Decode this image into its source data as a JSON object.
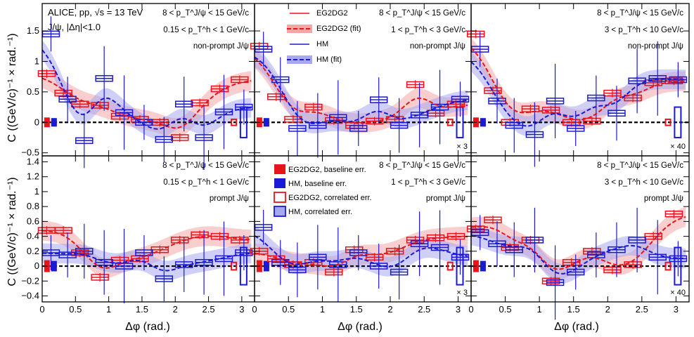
{
  "figure": {
    "experiment": "ALICE, pp, √s = 13 TeV",
    "particle": "J/ψ, |Δη|<1.0",
    "x_axis_title": "Δφ (rad.)",
    "y_axis_title": "C ((GeV/c)⁻¹ × rad.⁻¹)",
    "x_ticks": [
      "0",
      "0.5",
      "1",
      "1.5",
      "2",
      "2.5",
      "3"
    ],
    "y_ticks_top": [
      "−0.5",
      "0",
      "0.5",
      "1",
      "1.5"
    ],
    "y_ticks_bottom": [
      "−0.4",
      "−0.2",
      "0",
      "0.2",
      "0.4",
      "0.6",
      "0.8",
      "1",
      "1.2",
      "1.4"
    ],
    "colors": {
      "red": "#e8141c",
      "blue": "#1a1ad6",
      "red_band": "#f4a6a6",
      "blue_band": "#a8a8f0"
    }
  },
  "legend_top": [
    "EG2DG2",
    "EG2DG2 (fit)",
    "HM",
    "HM (fit)"
  ],
  "legend_bottom": [
    "EG2DG2, baseline err.",
    "HM, baseline err.",
    "EG2DG2, correlated err.",
    "HM, correlated err."
  ],
  "chart_data": [
    {
      "type": "scatter",
      "panel": "top-left",
      "jpsi_pt": "8 < p_T^J/ψ < 15 GeV/c",
      "h_pt": "0.15 < p_T^h < 1 GeV/c",
      "category": "non-prompt J/ψ",
      "scale": "",
      "x": [
        0.1,
        0.35,
        0.6,
        0.9,
        1.2,
        1.5,
        1.8,
        2.1,
        2.4,
        2.7,
        3.0
      ],
      "series": [
        {
          "name": "EG2DG2",
          "values": [
            0.8,
            0.48,
            0.3,
            0.28,
            0.1,
            0.05,
            0.0,
            -0.25,
            0.32,
            0.55,
            0.7
          ]
        },
        {
          "name": "HM",
          "values": [
            1.45,
            0.38,
            -0.3,
            0.72,
            0.16,
            0.0,
            -0.28,
            0.3,
            -0.25,
            0.17,
            0.25
          ]
        }
      ],
      "ylim": [
        -0.55,
        1.95
      ]
    },
    {
      "type": "scatter",
      "panel": "top-middle",
      "jpsi_pt": "8 < p_T^J/ψ < 15 GeV/c",
      "h_pt": "1 < p_T^h < 3 GeV/c",
      "category": "non-prompt J/ψ",
      "scale": "× 3",
      "x": [
        0.1,
        0.35,
        0.6,
        0.9,
        1.2,
        1.5,
        1.8,
        2.1,
        2.4,
        2.7,
        3.0
      ],
      "series": [
        {
          "name": "EG2DG2",
          "values": [
            1.25,
            0.42,
            0.05,
            0.25,
            0.03,
            -0.05,
            0.02,
            0.05,
            0.62,
            0.15,
            0.3
          ]
        },
        {
          "name": "HM",
          "values": [
            1.2,
            0.7,
            -0.1,
            -0.05,
            0.08,
            -0.1,
            0.37,
            -0.05,
            0.12,
            0.25,
            0.38
          ]
        }
      ],
      "ylim": [
        -0.55,
        1.95
      ]
    },
    {
      "type": "scatter",
      "panel": "top-right",
      "jpsi_pt": "8 < p_T^J/ψ < 15 GeV/c",
      "h_pt": "3 < p_T^h < 10 GeV/c",
      "category": "non-prompt J/ψ",
      "scale": "× 40",
      "x": [
        0.1,
        0.35,
        0.6,
        0.9,
        1.2,
        1.5,
        1.8,
        2.1,
        2.4,
        2.7,
        3.0
      ],
      "series": [
        {
          "name": "EG2DG2",
          "values": [
            1.45,
            0.52,
            0.0,
            0.22,
            0.2,
            0.0,
            0.02,
            0.48,
            0.4,
            0.65,
            0.68
          ]
        },
        {
          "name": "HM",
          "values": [
            1.2,
            0.35,
            -0.05,
            -0.2,
            0.35,
            -0.1,
            0.4,
            0.15,
            0.68,
            0.72,
            0.7
          ]
        }
      ],
      "ylim": [
        -0.55,
        1.95
      ]
    },
    {
      "type": "scatter",
      "panel": "bottom-left",
      "jpsi_pt": "8 < p_T^J/ψ < 15 GeV/c",
      "h_pt": "0.15 < p_T^h < 1 GeV/c",
      "category": "prompt J/ψ",
      "scale": "",
      "x": [
        0.1,
        0.35,
        0.6,
        0.9,
        1.2,
        1.5,
        1.8,
        2.1,
        2.4,
        2.7,
        3.0
      ],
      "series": [
        {
          "name": "EG2DG2",
          "values": [
            0.48,
            0.48,
            0.18,
            -0.15,
            0.08,
            0.1,
            0.22,
            0.35,
            0.42,
            0.4,
            0.35
          ]
        },
        {
          "name": "HM",
          "values": [
            0.18,
            0.15,
            0.2,
            0.05,
            0.0,
            0.18,
            -0.17,
            0.02,
            0.05,
            0.1,
            0.18
          ]
        }
      ],
      "ylim": [
        -0.48,
        1.48
      ]
    },
    {
      "type": "scatter",
      "panel": "bottom-middle",
      "jpsi_pt": "8 < p_T^J/ψ < 15 GeV/c",
      "h_pt": "1 < p_T^h < 3 GeV/c",
      "category": "prompt J/ψ",
      "scale": "× 3",
      "x": [
        0.1,
        0.35,
        0.6,
        0.9,
        1.2,
        1.5,
        1.8,
        2.1,
        2.4,
        2.7,
        3.0
      ],
      "series": [
        {
          "name": "EG2DG2",
          "values": [
            0.2,
            0.1,
            0.02,
            0.05,
            -0.08,
            0.22,
            0.12,
            0.2,
            0.35,
            0.38,
            0.4
          ]
        },
        {
          "name": "HM",
          "values": [
            0.52,
            0.05,
            -0.05,
            0.12,
            0.02,
            0.18,
            0.0,
            -0.08,
            0.3,
            0.25,
            0.12
          ]
        }
      ],
      "ylim": [
        -0.48,
        1.48
      ]
    },
    {
      "type": "scatter",
      "panel": "bottom-right",
      "jpsi_pt": "8 < p_T^J/ψ < 15 GeV/c",
      "h_pt": "3 < p_T^h < 10 GeV/c",
      "category": "prompt J/ψ",
      "scale": "× 40",
      "x": [
        0.1,
        0.35,
        0.6,
        0.9,
        1.2,
        1.5,
        1.8,
        2.1,
        2.4,
        2.7,
        3.0
      ],
      "series": [
        {
          "name": "EG2DG2",
          "values": [
            0.5,
            0.62,
            0.25,
            0.35,
            -0.2,
            0.05,
            0.2,
            -0.05,
            0.02,
            0.4,
            0.7
          ]
        },
        {
          "name": "HM",
          "values": [
            0.45,
            0.3,
            0.22,
            0.35,
            -0.22,
            -0.08,
            0.15,
            0.22,
            0.35,
            0.12,
            0.1
          ]
        }
      ],
      "ylim": [
        -0.48,
        1.48
      ]
    }
  ]
}
